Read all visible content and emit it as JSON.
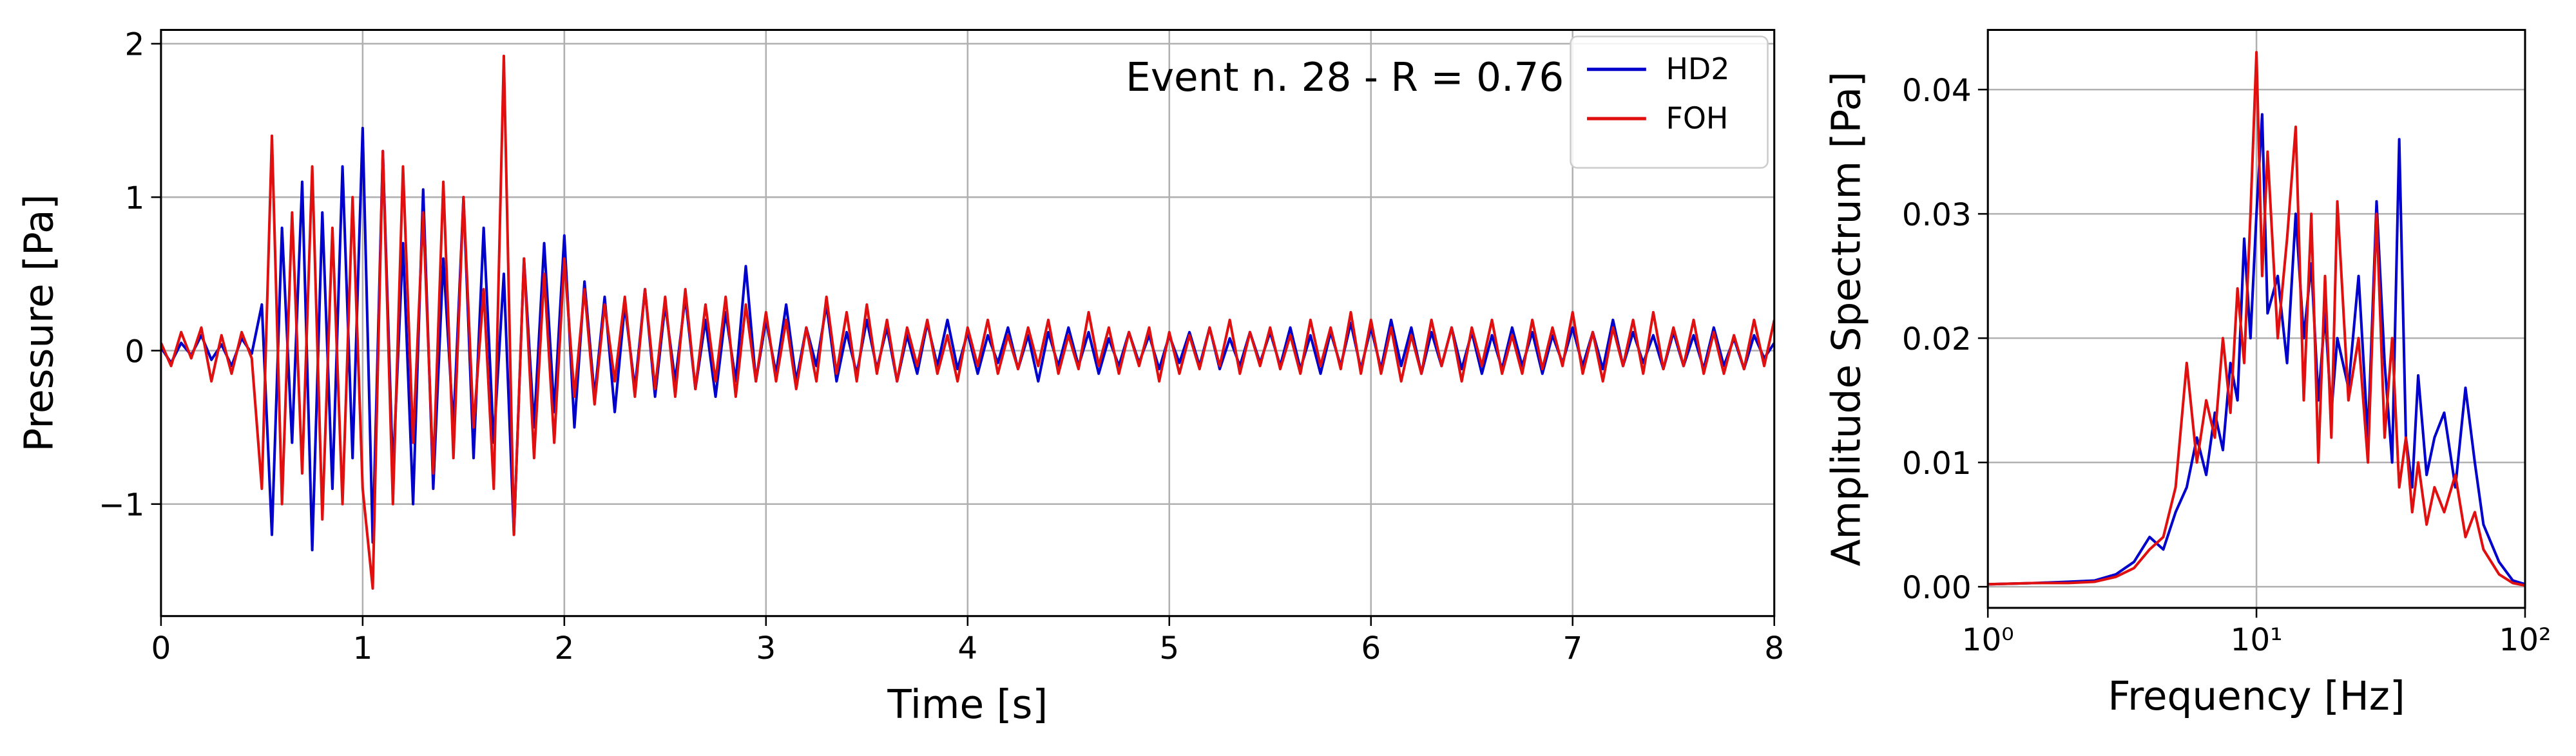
{
  "chart_data": [
    {
      "type": "line",
      "xlabel": "Time [s]",
      "ylabel": "Pressure [Pa]",
      "annotation": "Event n. 28 - R = 0.76",
      "x": [
        0,
        0.05,
        0.1,
        0.15,
        0.2,
        0.25,
        0.3,
        0.35,
        0.4,
        0.45,
        0.5,
        0.55,
        0.6,
        0.65,
        0.7,
        0.75,
        0.8,
        0.85,
        0.9,
        0.95,
        1,
        1.05,
        1.1,
        1.15,
        1.2,
        1.25,
        1.3,
        1.35,
        1.4,
        1.45,
        1.5,
        1.55,
        1.6,
        1.65,
        1.7,
        1.75,
        1.8,
        1.85,
        1.9,
        1.95,
        2,
        2.05,
        2.1,
        2.15,
        2.2,
        2.25,
        2.3,
        2.35,
        2.4,
        2.45,
        2.5,
        2.55,
        2.6,
        2.65,
        2.7,
        2.75,
        2.8,
        2.85,
        2.9,
        2.95,
        3,
        3.05,
        3.1,
        3.15,
        3.2,
        3.25,
        3.3,
        3.35,
        3.4,
        3.45,
        3.5,
        3.55,
        3.6,
        3.65,
        3.7,
        3.75,
        3.8,
        3.85,
        3.9,
        3.95,
        4,
        4.05,
        4.1,
        4.15,
        4.2,
        4.25,
        4.3,
        4.35,
        4.4,
        4.45,
        4.5,
        4.55,
        4.6,
        4.65,
        4.7,
        4.75,
        4.8,
        4.85,
        4.9,
        4.95,
        5,
        5.05,
        5.1,
        5.15,
        5.2,
        5.25,
        5.3,
        5.35,
        5.4,
        5.45,
        5.5,
        5.55,
        5.6,
        5.65,
        5.7,
        5.75,
        5.8,
        5.85,
        5.9,
        5.95,
        6,
        6.05,
        6.1,
        6.15,
        6.2,
        6.25,
        6.3,
        6.35,
        6.4,
        6.45,
        6.5,
        6.55,
        6.6,
        6.65,
        6.7,
        6.75,
        6.8,
        6.85,
        6.9,
        6.95,
        7,
        7.05,
        7.1,
        7.15,
        7.2,
        7.25,
        7.3,
        7.35,
        7.4,
        7.45,
        7.5,
        7.55,
        7.6,
        7.65,
        7.7,
        7.75,
        7.8,
        7.85,
        7.9,
        7.95,
        8
      ],
      "series": [
        {
          "name": "HD2",
          "color": "#0000cc",
          "values": [
            0.02,
            -0.08,
            0.05,
            -0.03,
            0.1,
            -0.06,
            0.04,
            -0.1,
            0.08,
            -0.02,
            0.3,
            -1.2,
            0.8,
            -0.6,
            1.1,
            -1.3,
            0.9,
            -0.9,
            1.2,
            -0.7,
            1.45,
            -1.25,
            1.3,
            -0.8,
            0.7,
            -1.0,
            1.05,
            -0.9,
            0.6,
            -0.5,
            1.0,
            -0.7,
            0.8,
            -0.6,
            0.5,
            -1.2,
            0.6,
            -0.5,
            0.7,
            -0.4,
            0.75,
            -0.5,
            0.45,
            -0.3,
            0.35,
            -0.4,
            0.3,
            -0.25,
            0.4,
            -0.3,
            0.3,
            -0.2,
            0.35,
            -0.25,
            0.2,
            -0.3,
            0.25,
            -0.2,
            0.55,
            -0.2,
            0.2,
            -0.15,
            0.3,
            -0.2,
            0.15,
            -0.1,
            0.3,
            -0.2,
            0.12,
            -0.15,
            0.2,
            -0.12,
            0.15,
            -0.2,
            0.1,
            -0.15,
            0.18,
            -0.1,
            0.2,
            -0.12,
            0.12,
            -0.15,
            0.1,
            -0.08,
            0.15,
            -0.12,
            0.1,
            -0.2,
            0.12,
            -0.1,
            0.15,
            -0.1,
            0.12,
            -0.15,
            0.08,
            -0.1,
            0.12,
            -0.08,
            0.1,
            -0.12,
            0.1,
            -0.08,
            0.12,
            -0.1,
            0.15,
            -0.12,
            0.08,
            -0.1,
            0.12,
            -0.08,
            0.12,
            -0.1,
            0.15,
            -0.12,
            0.1,
            -0.15,
            0.12,
            -0.1,
            0.18,
            -0.12,
            0.15,
            -0.12,
            0.2,
            -0.1,
            0.15,
            -0.15,
            0.12,
            -0.1,
            0.15,
            -0.12,
            0.12,
            -0.15,
            0.1,
            -0.12,
            0.15,
            -0.1,
            0.12,
            -0.15,
            0.1,
            -0.08,
            0.15,
            -0.1,
            0.12,
            -0.12,
            0.2,
            -0.1,
            0.12,
            -0.08,
            0.1,
            -0.12,
            0.12,
            -0.1,
            0.1,
            -0.12,
            0.15,
            -0.1,
            0.08,
            -0.12,
            0.1,
            -0.05,
            0.05
          ]
        },
        {
          "name": "FOH",
          "color": "#e01010",
          "values": [
            0.05,
            -0.1,
            0.12,
            -0.05,
            0.15,
            -0.2,
            0.1,
            -0.15,
            0.12,
            -0.05,
            -0.9,
            1.4,
            -1.0,
            0.9,
            -0.8,
            1.2,
            -1.1,
            0.8,
            -1.0,
            1.0,
            -0.9,
            -1.55,
            1.3,
            -1.0,
            1.2,
            -0.6,
            0.9,
            -0.8,
            1.1,
            -0.7,
            1.0,
            -0.5,
            0.4,
            -0.9,
            1.92,
            -1.2,
            0.6,
            -0.7,
            0.5,
            -0.6,
            0.6,
            -0.3,
            0.4,
            -0.35,
            0.3,
            -0.2,
            0.35,
            -0.3,
            0.4,
            -0.25,
            0.35,
            -0.3,
            0.4,
            -0.25,
            0.3,
            -0.2,
            0.35,
            -0.3,
            0.3,
            -0.2,
            0.25,
            -0.2,
            0.2,
            -0.25,
            0.15,
            -0.2,
            0.35,
            -0.15,
            0.25,
            -0.2,
            0.3,
            -0.15,
            0.2,
            -0.2,
            0.15,
            -0.1,
            0.2,
            -0.15,
            0.1,
            -0.2,
            0.15,
            -0.1,
            0.2,
            -0.15,
            0.1,
            -0.12,
            0.15,
            -0.1,
            0.2,
            -0.15,
            0.1,
            -0.12,
            0.25,
            -0.1,
            0.15,
            -0.15,
            0.12,
            -0.1,
            0.15,
            -0.2,
            0.12,
            -0.15,
            0.1,
            -0.12,
            0.15,
            -0.1,
            0.2,
            -0.15,
            0.12,
            -0.1,
            0.15,
            -0.12,
            0.1,
            -0.15,
            0.2,
            -0.1,
            0.15,
            -0.12,
            0.25,
            -0.15,
            0.2,
            -0.15,
            0.15,
            -0.2,
            0.1,
            -0.15,
            0.2,
            -0.1,
            0.15,
            -0.2,
            0.15,
            -0.1,
            0.2,
            -0.15,
            0.1,
            -0.15,
            0.2,
            -0.12,
            0.15,
            -0.1,
            0.25,
            -0.15,
            0.12,
            -0.2,
            0.15,
            -0.1,
            0.2,
            -0.15,
            0.25,
            -0.12,
            0.15,
            -0.1,
            0.2,
            -0.15,
            0.12,
            -0.15,
            0.1,
            -0.12,
            0.2,
            -0.1,
            0.2
          ]
        }
      ],
      "xlim": [
        0,
        8
      ],
      "xticks": [
        0,
        1,
        2,
        3,
        4,
        5,
        6,
        7,
        8
      ],
      "ylim": [
        -1.73,
        2.09
      ],
      "yticks": [
        {
          "value": -1,
          "label": "−1"
        },
        0,
        1,
        2
      ],
      "grid": true,
      "legend": "upper right"
    },
    {
      "type": "line",
      "xlabel": "Frequency [Hz]",
      "ylabel": "Amplitude Spectrum [Pa]",
      "xscale": "log",
      "x": [
        1,
        1.5,
        2,
        2.5,
        3,
        3.5,
        4,
        4.5,
        5,
        5.5,
        6,
        6.5,
        7,
        7.5,
        8,
        8.5,
        9,
        9.5,
        10,
        10.5,
        11,
        12,
        13,
        14,
        15,
        16,
        17,
        18,
        19,
        20,
        22,
        24,
        26,
        28,
        30,
        32,
        34,
        36,
        38,
        40,
        43,
        46,
        50,
        55,
        60,
        65,
        70,
        80,
        90,
        100
      ],
      "series": [
        {
          "color": "#0000cc",
          "values": [
            0.0002,
            0.0003,
            0.0004,
            0.0005,
            0.001,
            0.002,
            0.004,
            0.003,
            0.006,
            0.008,
            0.012,
            0.009,
            0.014,
            0.011,
            0.018,
            0.015,
            0.028,
            0.02,
            0.03,
            0.038,
            0.022,
            0.025,
            0.018,
            0.03,
            0.02,
            0.026,
            0.015,
            0.022,
            0.014,
            0.02,
            0.016,
            0.025,
            0.012,
            0.031,
            0.018,
            0.01,
            0.036,
            0.012,
            0.008,
            0.017,
            0.009,
            0.012,
            0.014,
            0.008,
            0.016,
            0.01,
            0.005,
            0.002,
            0.0005,
            0.0002
          ]
        },
        {
          "color": "#e01010",
          "values": [
            0.0002,
            0.0003,
            0.0003,
            0.0004,
            0.0008,
            0.0015,
            0.003,
            0.004,
            0.008,
            0.018,
            0.01,
            0.015,
            0.012,
            0.02,
            0.014,
            0.024,
            0.018,
            0.03,
            0.043,
            0.025,
            0.035,
            0.02,
            0.028,
            0.037,
            0.015,
            0.03,
            0.01,
            0.025,
            0.012,
            0.031,
            0.015,
            0.02,
            0.01,
            0.03,
            0.012,
            0.02,
            0.008,
            0.012,
            0.006,
            0.01,
            0.005,
            0.008,
            0.006,
            0.009,
            0.004,
            0.006,
            0.003,
            0.001,
            0.0003,
            0.0001
          ]
        }
      ],
      "xlim": [
        1,
        100
      ],
      "xticks": [
        {
          "value": 1,
          "label": "10⁰"
        },
        {
          "value": 10,
          "label": "10¹"
        },
        {
          "value": 100,
          "label": "10²"
        }
      ],
      "ylim": [
        -0.0017,
        0.0448
      ],
      "yticks": [
        {
          "value": 0,
          "label": "0.00"
        },
        {
          "value": 0.01,
          "label": "0.01"
        },
        {
          "value": 0.02,
          "label": "0.02"
        },
        {
          "value": 0.03,
          "label": "0.03"
        },
        {
          "value": 0.04,
          "label": "0.04"
        }
      ],
      "grid": true
    }
  ]
}
